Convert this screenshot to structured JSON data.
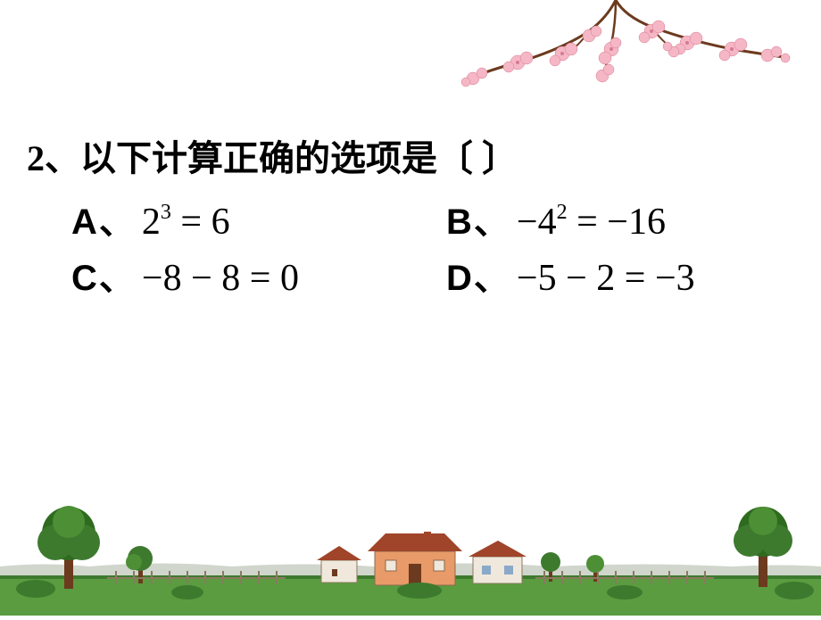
{
  "question": {
    "number": "2",
    "separator": "、",
    "text": "以下计算正确的选项是〔   〕"
  },
  "options": {
    "A": {
      "label": "A",
      "sep": "、",
      "expr_html": "2<span class='sup'>3</span> = 6"
    },
    "B": {
      "label": "B",
      "sep": "、",
      "expr_html": "−4<span class='sup'>2</span> = −16"
    },
    "C": {
      "label": "C",
      "sep": "、",
      "expr_html": "−8 − 8 = 0"
    },
    "D": {
      "label": "D",
      "sep": "、",
      "expr_html": "−5 − 2 = −3"
    }
  },
  "colors": {
    "text": "#000000",
    "background": "#ffffff",
    "blossom_pink": "#f5b7c5",
    "blossom_dark": "#d67a92",
    "branch": "#6c3a1e",
    "grass": "#3d7a2e",
    "grass_light": "#5a9c3f",
    "tree_green": "#2e6b1f",
    "tree_green_light": "#4d8f35",
    "house_wall": "#e89a68",
    "house_roof": "#a0442a",
    "house_white": "#f0e8dc",
    "sky_line": "#7a8a6f"
  }
}
